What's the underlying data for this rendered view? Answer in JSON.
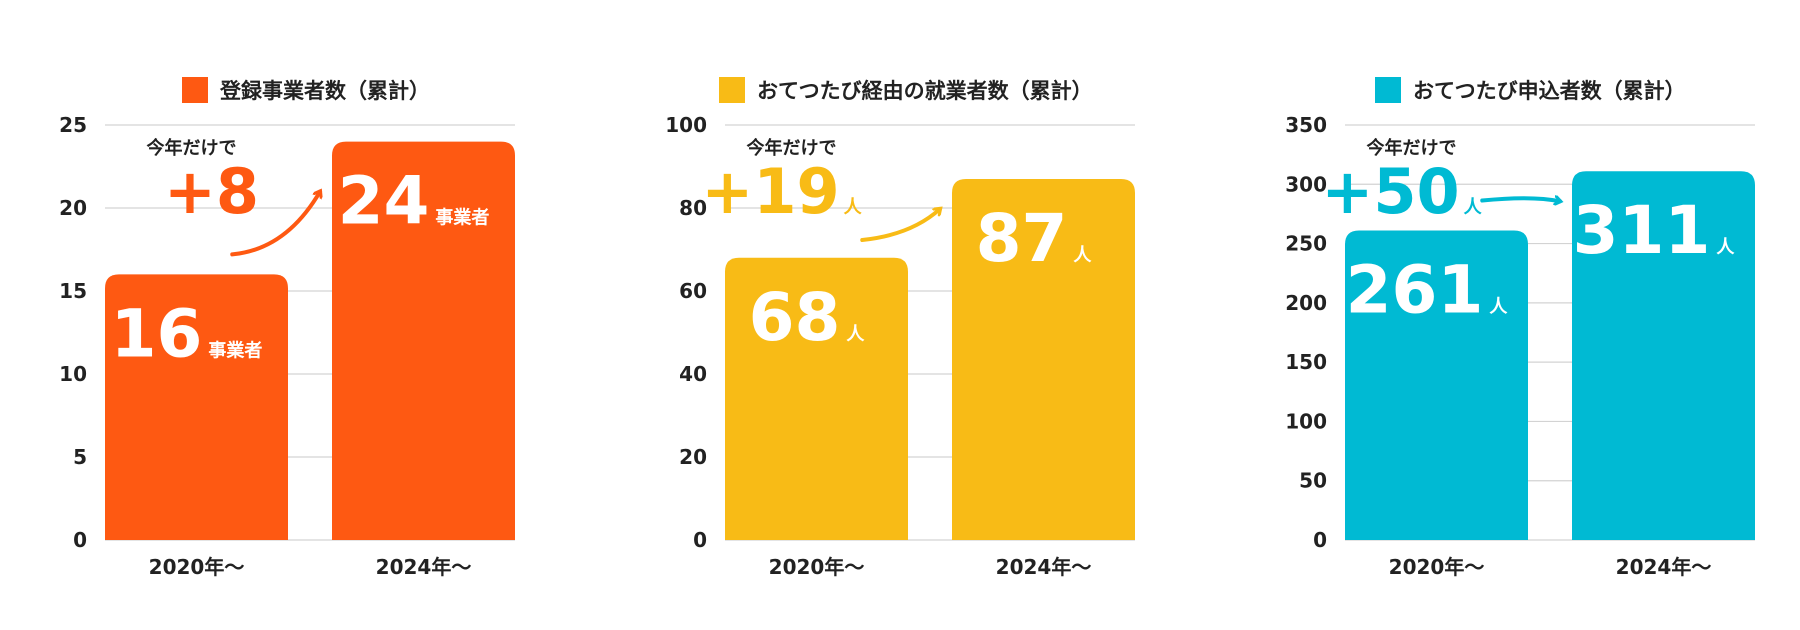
{
  "chart_data": [
    {
      "type": "bar",
      "title": "登録事業者数（累計）",
      "color": "#fe5912",
      "categories": [
        "2020年〜",
        "2024年〜"
      ],
      "values": [
        16,
        24
      ],
      "unit": "事業者",
      "ylim": [
        0,
        25
      ],
      "yticks": [
        0,
        5,
        10,
        15,
        20,
        25
      ],
      "grid": true,
      "legend": "top-center",
      "annotation": {
        "caption": "今年だけで",
        "value": "+8",
        "unit": ""
      }
    },
    {
      "type": "bar",
      "title": "おてつたび経由の就業者数（累計）",
      "color": "#f8bb16",
      "categories": [
        "2020年〜",
        "2024年〜"
      ],
      "values": [
        68,
        87
      ],
      "unit": "人",
      "ylim": [
        0,
        100
      ],
      "yticks": [
        0,
        20,
        40,
        60,
        80,
        100
      ],
      "grid": true,
      "legend": "top-center",
      "annotation": {
        "caption": "今年だけで",
        "value": "+19",
        "unit": "人"
      }
    },
    {
      "type": "bar",
      "title": "おてつたび申込者数（累計）",
      "color": "#00bad3",
      "categories": [
        "2020年〜",
        "2024年〜"
      ],
      "values": [
        261,
        311
      ],
      "unit": "人",
      "ylim": [
        0,
        350
      ],
      "yticks": [
        0,
        50,
        100,
        150,
        200,
        250,
        300,
        350
      ],
      "grid": true,
      "legend": "top-center",
      "annotation": {
        "caption": "今年だけで",
        "value": "+50",
        "unit": "人"
      }
    }
  ]
}
